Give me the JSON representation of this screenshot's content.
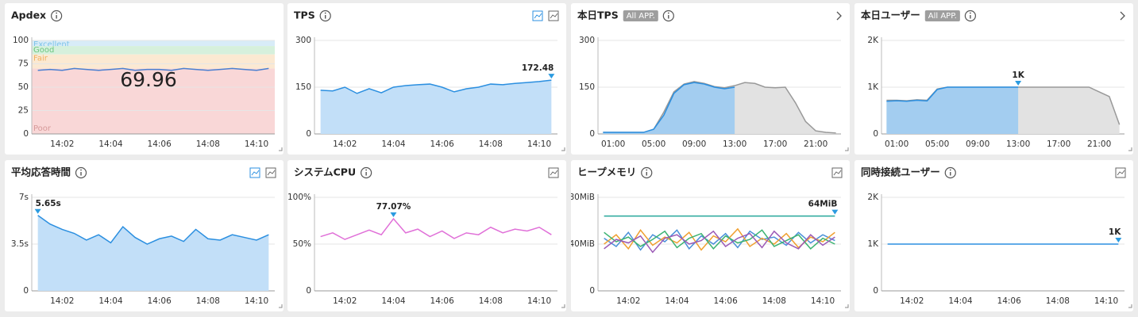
{
  "chart_data": [
    {
      "type": "line",
      "title": "Apdex",
      "ylim": [
        0,
        100
      ],
      "yticks": [
        0,
        25,
        50,
        75,
        100
      ],
      "grid": true,
      "bands": [
        {
          "name": "Excellent",
          "from": 94,
          "to": 100,
          "color": "#d8ecf8",
          "text_color": "#7ec3e8"
        },
        {
          "name": "Good",
          "from": 85,
          "to": 94,
          "color": "#d6f0dc",
          "text_color": "#6cc57f"
        },
        {
          "name": "Fair",
          "from": 70,
          "to": 85,
          "color": "#fbe9d2",
          "text_color": "#f0b060"
        },
        {
          "name": "Poor",
          "from": 0,
          "to": 70,
          "color": "#f9d7d7",
          "text_color": "#d69a9a"
        }
      ],
      "current_value": "69.96",
      "categories": [
        null,
        null,
        "14:02",
        null,
        null,
        null,
        "14:04",
        null,
        null,
        null,
        "14:06",
        null,
        null,
        null,
        "14:08",
        null,
        null,
        null,
        "14:10",
        null
      ],
      "series": [
        {
          "color": "#4a7fd0",
          "values": [
            68,
            69,
            68,
            70,
            69,
            68,
            69,
            70,
            68,
            69,
            69,
            68,
            70,
            69,
            68,
            69,
            70,
            69,
            68,
            70
          ]
        }
      ]
    },
    {
      "type": "line",
      "title": "TPS",
      "ylim": [
        0,
        300
      ],
      "yticks": [
        0,
        150,
        300
      ],
      "grid": true,
      "categories": [
        null,
        null,
        "14:02",
        null,
        null,
        null,
        "14:04",
        null,
        null,
        null,
        "14:06",
        null,
        null,
        null,
        "14:08",
        null,
        null,
        null,
        "14:10",
        null
      ],
      "series": [
        {
          "color": "#2b8fe0",
          "fill": "#c2dff8",
          "values": [
            140,
            138,
            150,
            130,
            145,
            132,
            150,
            155,
            158,
            160,
            150,
            135,
            145,
            150,
            160,
            158,
            162,
            165,
            168,
            172.48
          ]
        }
      ],
      "peak_series": 0
    },
    {
      "type": "line",
      "title": "本日TPS",
      "badge": "All APP.",
      "ylim": [
        0,
        300
      ],
      "yticks": [
        0,
        150,
        300
      ],
      "grid": true,
      "categories": [
        null,
        "01:00",
        null,
        null,
        null,
        "05:00",
        null,
        null,
        null,
        "09:00",
        null,
        null,
        null,
        "13:00",
        null,
        null,
        null,
        "17:00",
        null,
        null,
        null,
        "21:00",
        null,
        null
      ],
      "series": [
        {
          "color": "#999999",
          "fill": "#e2e2e2",
          "values": [
            5,
            5,
            5,
            5,
            5,
            15,
            70,
            135,
            160,
            168,
            162,
            152,
            148,
            155,
            165,
            162,
            150,
            148,
            150,
            100,
            40,
            10,
            5,
            3
          ]
        },
        {
          "color": "#2b8fe0",
          "fill": "#a3cdf0",
          "values": [
            5,
            5,
            5,
            5,
            5,
            15,
            60,
            130,
            158,
            165,
            160,
            150,
            145,
            150,
            null,
            null,
            null,
            null,
            null,
            null,
            null,
            null,
            null,
            null
          ]
        }
      ]
    },
    {
      "type": "line",
      "title": "本日ユーザー",
      "badge": "All APP.",
      "ylim": [
        0,
        2000
      ],
      "yticks": [
        0,
        {
          "value": 1000,
          "label": "1K"
        },
        {
          "value": 2000,
          "label": "2K"
        }
      ],
      "grid": true,
      "categories": [
        null,
        "01:00",
        null,
        null,
        null,
        "05:00",
        null,
        null,
        null,
        "09:00",
        null,
        null,
        null,
        "13:00",
        null,
        null,
        null,
        "17:00",
        null,
        null,
        null,
        "21:00",
        null,
        null
      ],
      "series": [
        {
          "color": "#999999",
          "fill": "#e2e2e2",
          "values": [
            720,
            720,
            710,
            730,
            720,
            960,
            1000,
            1000,
            1000,
            1000,
            1000,
            1000,
            1000,
            1000,
            1000,
            1000,
            1000,
            1000,
            1000,
            1000,
            1000,
            900,
            800,
            200
          ]
        },
        {
          "color": "#2b8fe0",
          "fill": "#a3cdf0",
          "values": [
            700,
            710,
            700,
            720,
            705,
            950,
            1000,
            1000,
            1000,
            1000,
            1000,
            1000,
            1000,
            1000,
            null,
            null,
            null,
            null,
            null,
            null,
            null,
            null,
            null,
            null
          ]
        }
      ],
      "peak_series": 1,
      "peak_label": "1K"
    },
    {
      "type": "line",
      "title": "平均応答時間",
      "ylim": [
        0,
        7
      ],
      "yticks": [
        0,
        {
          "value": 3.5,
          "label": "3.5s"
        },
        {
          "value": 7,
          "label": "7s"
        }
      ],
      "grid": true,
      "categories": [
        null,
        null,
        "14:02",
        null,
        null,
        null,
        "14:04",
        null,
        null,
        null,
        "14:06",
        null,
        null,
        null,
        "14:08",
        null,
        null,
        null,
        "14:10",
        null
      ],
      "series": [
        {
          "color": "#2b8fe0",
          "fill": "#c2dff8",
          "values": [
            5.65,
            5.0,
            4.6,
            4.3,
            3.8,
            4.2,
            3.6,
            4.8,
            4.0,
            3.5,
            3.9,
            4.1,
            3.7,
            4.6,
            3.9,
            3.8,
            4.2,
            4.0,
            3.8,
            4.2
          ]
        }
      ],
      "peak_series": 0,
      "peak_label": "5.65s"
    },
    {
      "type": "line",
      "title": "システムCPU",
      "ylim": [
        0,
        100
      ],
      "yticks": [
        0,
        {
          "value": 50,
          "label": "50%"
        },
        {
          "value": 100,
          "label": "100%"
        }
      ],
      "grid": true,
      "categories": [
        null,
        null,
        "14:02",
        null,
        null,
        null,
        "14:04",
        null,
        null,
        null,
        "14:06",
        null,
        null,
        null,
        "14:08",
        null,
        null,
        null,
        "14:10",
        null
      ],
      "series": [
        {
          "color": "#e070d8",
          "values": [
            58,
            62,
            55,
            60,
            65,
            60,
            77.07,
            62,
            66,
            58,
            64,
            56,
            62,
            60,
            68,
            62,
            66,
            64,
            68,
            60
          ]
        }
      ],
      "peak_series": 0,
      "peak_label": "77.07%"
    },
    {
      "type": "line",
      "title": "ヒープメモリ",
      "ylim": [
        0,
        80
      ],
      "yticks": [
        0,
        {
          "value": 40,
          "label": "40MiB"
        },
        {
          "value": 80,
          "label": "80MiB"
        }
      ],
      "grid": true,
      "categories": [
        null,
        null,
        "14:02",
        null,
        null,
        null,
        "14:04",
        null,
        null,
        null,
        "14:06",
        null,
        null,
        null,
        "14:08",
        null,
        null,
        null,
        "14:10",
        null
      ],
      "series": [
        {
          "color": "#4a90d9",
          "values": [
            45,
            38,
            50,
            35,
            48,
            42,
            52,
            36,
            47,
            40,
            49,
            37,
            51,
            44,
            46,
            39,
            50,
            41,
            48,
            43
          ]
        },
        {
          "color": "#f0a030",
          "values": [
            40,
            48,
            36,
            52,
            39,
            46,
            41,
            50,
            35,
            47,
            42,
            53,
            38,
            45,
            40,
            49,
            37,
            46,
            42,
            50
          ]
        },
        {
          "color": "#3cb371",
          "values": [
            50,
            42,
            46,
            38,
            44,
            51,
            37,
            45,
            49,
            36,
            47,
            41,
            44,
            52,
            38,
            43,
            48,
            36,
            45,
            40
          ]
        },
        {
          "color": "#9b59b6",
          "values": [
            36,
            44,
            41,
            47,
            33,
            45,
            48,
            40,
            43,
            51,
            38,
            45,
            49,
            37,
            51,
            41,
            36,
            48,
            39,
            46
          ]
        },
        {
          "color": "#26a69a",
          "values": [
            64,
            64,
            64,
            64,
            64,
            64,
            64,
            64,
            64,
            64,
            64,
            64,
            64,
            64,
            64,
            64,
            64,
            64,
            64,
            64
          ]
        }
      ],
      "peak_series": 4,
      "peak_label": "64MiB"
    },
    {
      "type": "line",
      "title": "同時接続ユーザー",
      "ylim": [
        0,
        2000
      ],
      "yticks": [
        0,
        {
          "value": 1000,
          "label": "1K"
        },
        {
          "value": 2000,
          "label": "2K"
        }
      ],
      "grid": true,
      "categories": [
        null,
        null,
        "14:02",
        null,
        null,
        null,
        "14:04",
        null,
        null,
        null,
        "14:06",
        null,
        null,
        null,
        "14:08",
        null,
        null,
        null,
        "14:10",
        null
      ],
      "series": [
        {
          "color": "#2b8fe0",
          "values": [
            1000,
            1000,
            1000,
            1000,
            1000,
            1000,
            1000,
            1000,
            1000,
            1000,
            1000,
            1000,
            1000,
            1000,
            1000,
            1000,
            1000,
            1000,
            1000,
            1000
          ]
        }
      ],
      "peak_series": 0,
      "peak_label": "1K"
    }
  ]
}
